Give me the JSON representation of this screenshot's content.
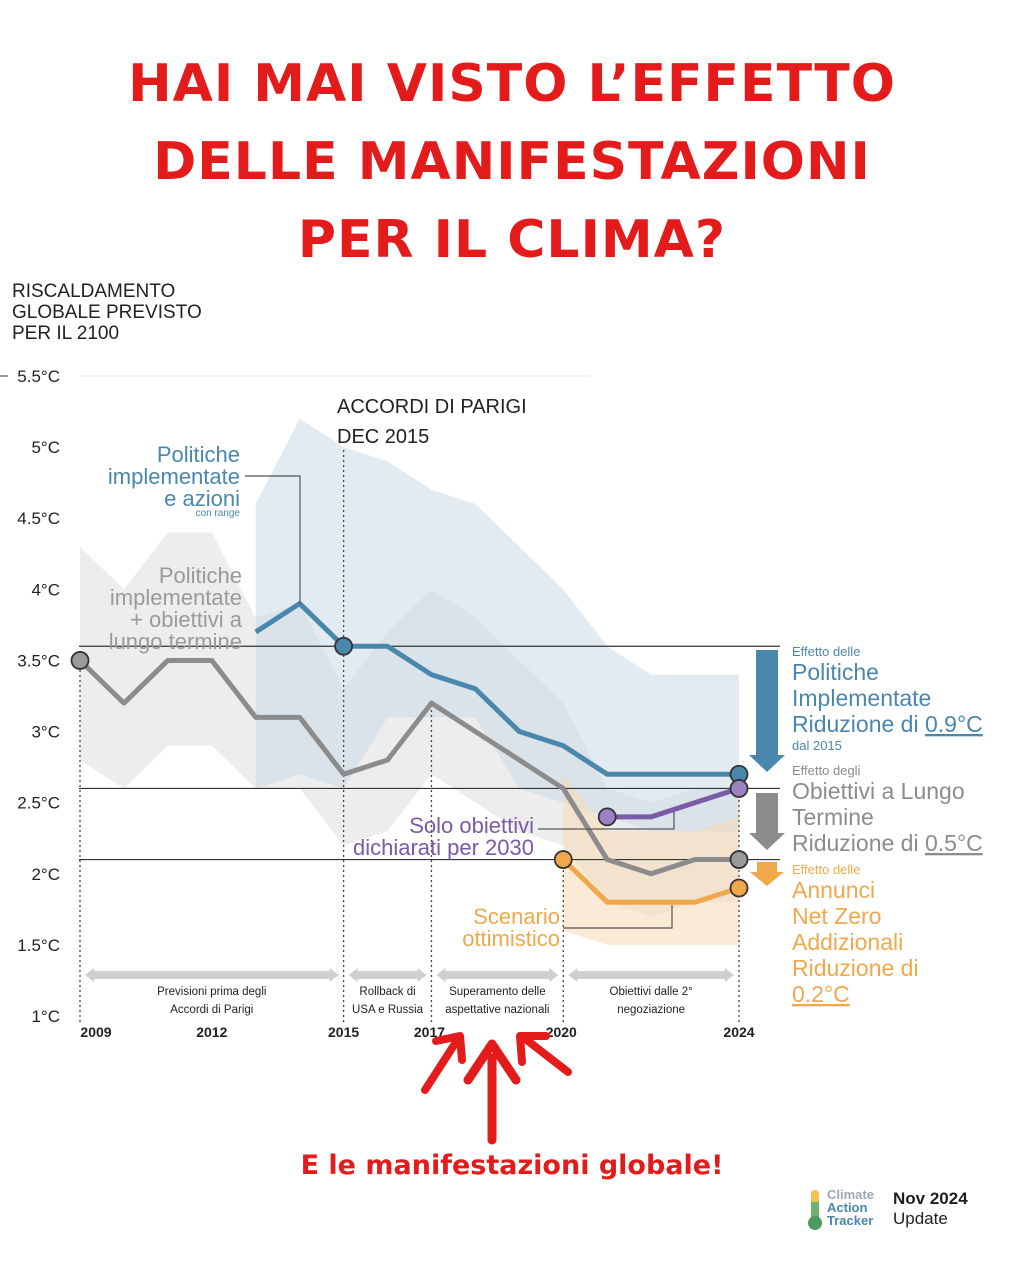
{
  "headline": {
    "line1": "HAI MAI VISTO L’EFFETTO",
    "line2": "DELLE MANIFESTAZIONI",
    "line3": "PER IL CLIMA?"
  },
  "cta": "E le manifestazioni globale!",
  "logo": {
    "line1": "Climate",
    "line2": "Action",
    "line3": "Tracker",
    "date": "Nov 2024",
    "update": "Update"
  },
  "colors": {
    "headline_red": "#e41b1b",
    "blue": "#4a87ad",
    "blue_band": "#c9dbe6",
    "gray": "#8c8c8c",
    "gray_band": "#dedede",
    "purple": "#7b5aa6",
    "orange": "#f1a84a",
    "orange_band": "#f6d9b4"
  },
  "chart_data": {
    "type": "line",
    "ylabel_lines": [
      "RISCALDAMENTO",
      "GLOBALE   PREVISTO",
      "PER IL 2100"
    ],
    "y_ticks": [
      "5.5°C",
      "5°C",
      "4.5°C",
      "4°C",
      "3.5°C",
      "3°C",
      "2.5°C",
      "2°C",
      "1.5°C",
      "1°C"
    ],
    "ylim": [
      1,
      5.5
    ],
    "xlim": [
      2009,
      2024
    ],
    "x_ticks": [
      "2009",
      "2012",
      "2015",
      "2017",
      "2020",
      "2024"
    ],
    "series": [
      {
        "label": "Politiche implementate e azioni",
        "label_lines": [
          "Politiche",
          "implementate",
          "e azioni"
        ],
        "sub_label": "con range",
        "color": "#4a87ad",
        "x": [
          2013,
          2014,
          2015,
          2016,
          2017,
          2018,
          2019,
          2020,
          2021,
          2022,
          2023,
          2024
        ],
        "y": [
          3.7,
          3.9,
          3.6,
          3.6,
          3.4,
          3.3,
          3.0,
          2.9,
          2.7,
          2.7,
          2.7,
          2.7
        ],
        "band_upper": [
          4.6,
          5.2,
          5.0,
          4.9,
          4.7,
          4.6,
          4.3,
          4.0,
          3.6,
          3.4,
          3.4,
          3.4
        ],
        "band_lower": [
          2.6,
          2.7,
          2.6,
          3.1,
          3.1,
          3.1,
          2.6,
          2.5,
          2.4,
          2.3,
          2.3,
          2.3
        ]
      },
      {
        "label": "Politiche implementate + obiettivi a lungo termine",
        "label_lines": [
          "Politiche",
          "implementate",
          "+ obiettivi a",
          "lungo termine"
        ],
        "color": "#8c8c8c",
        "x": [
          2009,
          2010,
          2011,
          2012,
          2013,
          2014,
          2015,
          2016,
          2017,
          2018,
          2019,
          2020,
          2021,
          2022,
          2023,
          2024
        ],
        "y": [
          3.5,
          3.2,
          3.5,
          3.5,
          3.1,
          3.1,
          2.7,
          2.8,
          3.2,
          3.0,
          2.8,
          2.6,
          2.1,
          2.0,
          2.1,
          2.1
        ],
        "band_upper": [
          4.3,
          4.0,
          4.4,
          4.4,
          3.8,
          3.9,
          3.3,
          3.7,
          4.0,
          3.8,
          3.5,
          3.2,
          2.6,
          2.5,
          2.6,
          2.6
        ],
        "band_lower": [
          2.8,
          2.6,
          2.9,
          2.9,
          2.6,
          2.6,
          2.2,
          2.3,
          2.7,
          2.5,
          2.3,
          2.2,
          1.8,
          1.7,
          1.8,
          1.8
        ]
      },
      {
        "label": "Solo obiettivi dichiarati per 2030",
        "label_lines": [
          "Solo obiettivi",
          "dichiarati per 2030"
        ],
        "color": "#7b5aa6",
        "x": [
          2021,
          2022,
          2023,
          2024
        ],
        "y": [
          2.4,
          2.4,
          2.5,
          2.6
        ]
      },
      {
        "label": "Scenario ottimistico",
        "label_lines": [
          "Scenario",
          "ottimistico"
        ],
        "color": "#f1a84a",
        "x": [
          2020,
          2021,
          2022,
          2023,
          2024
        ],
        "y": [
          2.1,
          1.8,
          1.8,
          1.8,
          1.9
        ],
        "band_upper": [
          2.7,
          2.3,
          2.3,
          2.3,
          2.4
        ],
        "band_lower": [
          1.6,
          1.5,
          1.5,
          1.5,
          1.5
        ]
      }
    ],
    "annotations": {
      "paris": [
        "ACCORDI DI PARIGI",
        "DEC 2015"
      ],
      "periods": [
        {
          "from": 2009,
          "to": 2015,
          "lines": [
            "Previsioni prima degli",
            "Accordi di Parigi"
          ]
        },
        {
          "from": 2015,
          "to": 2017,
          "lines": [
            "Rollback di",
            "USA e Russia"
          ]
        },
        {
          "from": 2017,
          "to": 2020,
          "lines": [
            "Superamento delle",
            "aspettative nazionali"
          ]
        },
        {
          "from": 2020,
          "to": 2024,
          "lines": [
            "Obiettivi dalle 2°",
            "negoziazione"
          ]
        }
      ],
      "right": [
        {
          "pre": "Effetto delle",
          "body": [
            "Politiche",
            "Implementate"
          ],
          "reduction_text": "Riduzione di ",
          "reduction_value": "0.9°C",
          "post": "dal 2015",
          "color": "#4a87ad"
        },
        {
          "pre": "Effetto degli",
          "body": [
            "Obiettivi a Lungo",
            "Termine"
          ],
          "reduction_text": "Riduzione di ",
          "reduction_value": "0.5°C",
          "color": "#8c8c8c"
        },
        {
          "pre": "Effetto delle",
          "body": [
            "Annunci",
            "Net Zero",
            "Addizionali",
            "Riduzione di"
          ],
          "reduction_text": "",
          "reduction_value": "0.2°C",
          "color": "#f1a84a"
        }
      ]
    }
  }
}
